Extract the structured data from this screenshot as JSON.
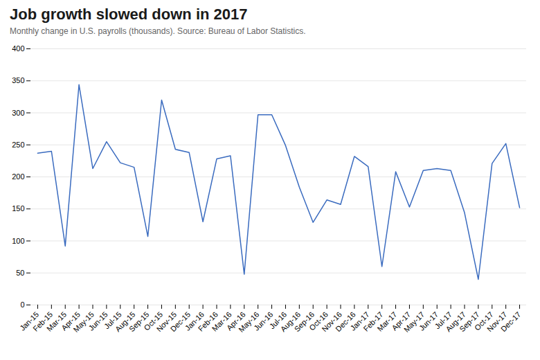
{
  "chart_data": {
    "type": "line",
    "title": "Job growth slowed down in 2017",
    "subtitle": "Monthly change in U.S. payrolls (thousands).  Source: Bureau of Labor Statistics.",
    "categories": [
      "Jan-15",
      "Feb-15",
      "Mar-15",
      "Apr-15",
      "May-15",
      "Jun-15",
      "Jul-15",
      "Aug-15",
      "Sep-15",
      "Oct-15",
      "Nov-15",
      "Dec-15",
      "Jan-16",
      "Feb-16",
      "Mar-16",
      "Apr-16",
      "May-16",
      "Jun-16",
      "Jul-16",
      "Aug-16",
      "Sep-16",
      "Oct-16",
      "Nov-16",
      "Dec-16",
      "Jan-17",
      "Feb-17",
      "Mar-17",
      "Apr-17",
      "May-17",
      "Jun-17",
      "Jul-17",
      "Aug-17",
      "Sep-17",
      "Oct-17",
      "Nov-17",
      "Dec-17"
    ],
    "values": [
      237,
      240,
      92,
      344,
      213,
      255,
      222,
      215,
      107,
      320,
      243,
      238,
      130,
      228,
      233,
      48,
      297,
      297,
      249,
      184,
      129,
      164,
      157,
      232,
      216,
      60,
      208,
      153,
      210,
      213,
      210,
      144,
      40,
      221,
      252,
      152
    ],
    "color": "#3a6bbf",
    "ylim": [
      0,
      400
    ],
    "yticks": [
      0,
      50,
      100,
      150,
      200,
      250,
      300,
      350,
      400
    ],
    "grid": true
  }
}
